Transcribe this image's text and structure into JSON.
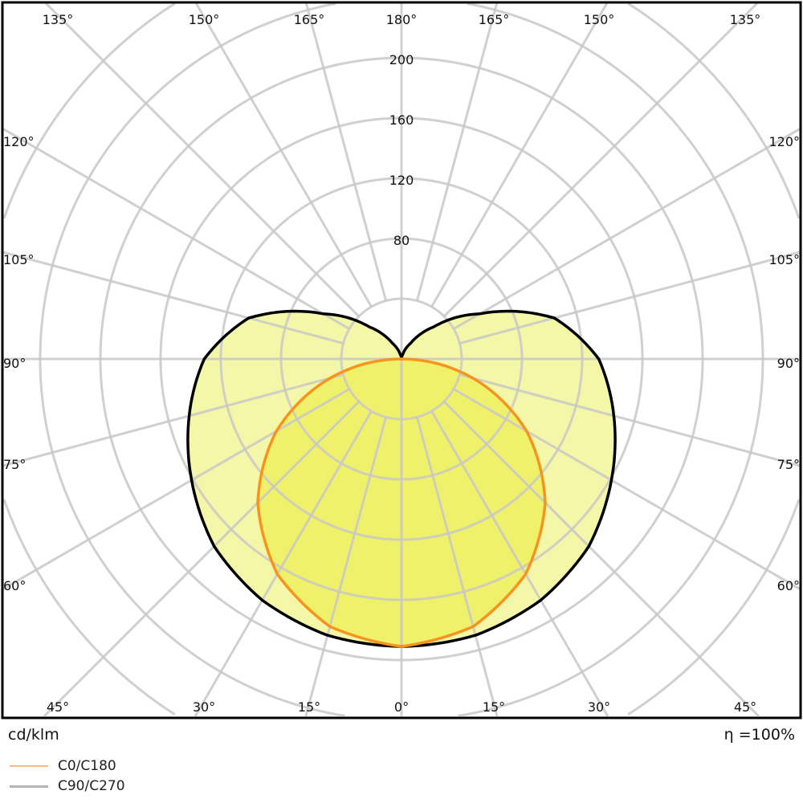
{
  "chart_data": {
    "type": "polar-line",
    "unit_label": "cd/klm",
    "efficiency_label": "η =100%",
    "radial_ticks": [
      80,
      120,
      160,
      200
    ],
    "radial_rings": [
      40,
      80,
      120,
      160,
      200,
      240,
      280
    ],
    "angle_labels": {
      "top": [
        "135°",
        "150°",
        "165°",
        "180°",
        "165°",
        "150°",
        "135°"
      ],
      "left": [
        "120°",
        "105°",
        "90°",
        "75°",
        "60°"
      ],
      "right": [
        "120°",
        "105°",
        "90°",
        "75°",
        "60°"
      ],
      "bottom": [
        "45°",
        "30°",
        "15°",
        "0°",
        "15°",
        "30°",
        "45°"
      ]
    },
    "series": [
      {
        "name": "C0/C180",
        "color": "#f7941d",
        "fill": "#eef060",
        "angles": [
          0,
          15,
          30,
          45,
          60,
          75,
          90
        ],
        "values": [
          191,
          184,
          165,
          135,
          96,
          49,
          0
        ]
      },
      {
        "name": "C90/C270",
        "color": "#000000",
        "fill": "#f3f59e",
        "angles": [
          0,
          15,
          30,
          45,
          60,
          75,
          90,
          105,
          120,
          135,
          150,
          165,
          180
        ],
        "values": [
          191,
          190,
          185,
          176,
          161,
          146,
          131,
          105,
          60,
          30,
          12,
          3,
          0
        ]
      }
    ],
    "legend": [
      {
        "name": "C0/C180",
        "color": "#f7b98a"
      },
      {
        "name": "C90/C270",
        "color": "#b5b5b5"
      }
    ],
    "grid": true
  }
}
